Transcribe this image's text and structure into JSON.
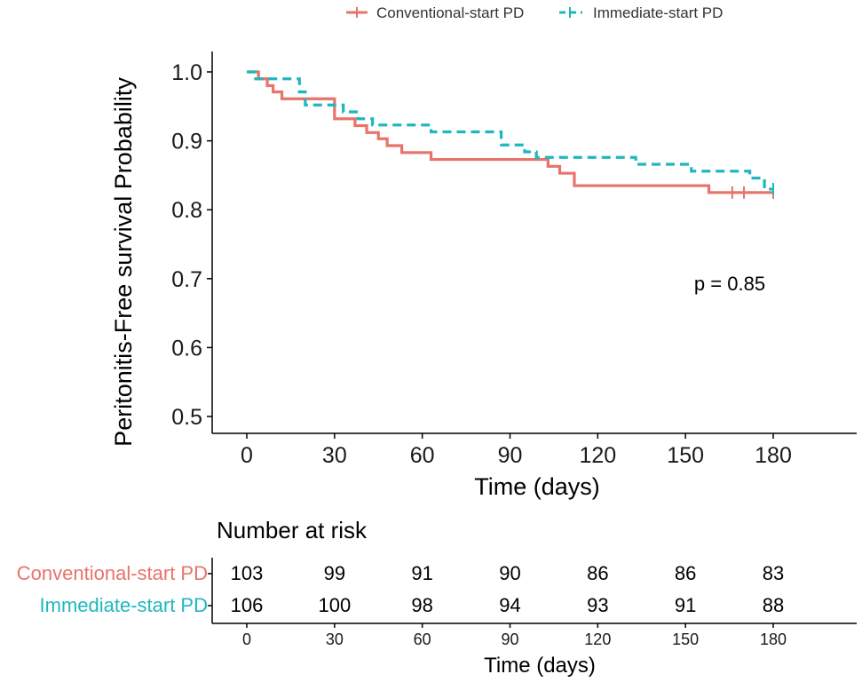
{
  "chart_data": {
    "type": "line",
    "subtype": "kaplan-meier",
    "xlabel": "Time (days)",
    "ylabel": "Peritonitis-Free survival Probability",
    "xlim": [
      -10,
      210
    ],
    "ylim": [
      0.47,
      1.02
    ],
    "xticks": [
      0,
      30,
      60,
      90,
      120,
      150,
      180
    ],
    "yticks": [
      0.5,
      0.6,
      0.7,
      0.8,
      0.9,
      1.0
    ],
    "ytick_labels": [
      "0.5",
      "0.6",
      "0.7",
      "0.8",
      "0.9",
      "1.0"
    ],
    "xtick_labels": [
      "0",
      "30",
      "60",
      "90",
      "120",
      "150",
      "180"
    ],
    "legend_position": "top-center",
    "annotation": "p = 0.85",
    "series": [
      {
        "name": "Conventional-start PD",
        "color": "#e8736b",
        "style": "solid",
        "steps": [
          [
            0,
            1.0
          ],
          [
            4,
            0.99
          ],
          [
            7,
            0.98
          ],
          [
            9,
            0.971
          ],
          [
            12,
            0.961
          ],
          [
            30,
            0.932
          ],
          [
            37,
            0.922
          ],
          [
            41,
            0.912
          ],
          [
            45,
            0.903
          ],
          [
            48,
            0.893
          ],
          [
            53,
            0.883
          ],
          [
            63,
            0.873
          ],
          [
            98,
            0.873
          ],
          [
            103,
            0.863
          ],
          [
            107,
            0.853
          ],
          [
            112,
            0.835
          ],
          [
            158,
            0.825
          ],
          [
            180,
            0.825
          ]
        ],
        "censored": [
          [
            166,
            0.825
          ],
          [
            170,
            0.825
          ],
          [
            180,
            0.825
          ]
        ]
      },
      {
        "name": "Immediate-start PD",
        "color": "#1fb7bf",
        "style": "dashed",
        "steps": [
          [
            0,
            1.0
          ],
          [
            3,
            0.99
          ],
          [
            18,
            0.971
          ],
          [
            20,
            0.952
          ],
          [
            33,
            0.942
          ],
          [
            38,
            0.932
          ],
          [
            43,
            0.923
          ],
          [
            62,
            0.923
          ],
          [
            63,
            0.913
          ],
          [
            84,
            0.913
          ],
          [
            87,
            0.894
          ],
          [
            95,
            0.884
          ],
          [
            99,
            0.876
          ],
          [
            131,
            0.876
          ],
          [
            133,
            0.866
          ],
          [
            152,
            0.856
          ],
          [
            172,
            0.846
          ],
          [
            177,
            0.83
          ],
          [
            180,
            0.83
          ]
        ],
        "censored": [
          [
            180,
            0.83
          ]
        ]
      }
    ]
  },
  "risk_table": {
    "title": "Number at risk",
    "xlabel": "Time (days)",
    "times": [
      "0",
      "30",
      "60",
      "90",
      "120",
      "150",
      "180"
    ],
    "groups": [
      {
        "name": "Conventional-start PD",
        "color": "#e8736b",
        "values": [
          "103",
          "99",
          "91",
          "90",
          "86",
          "86",
          "83"
        ]
      },
      {
        "name": "Immediate-start PD",
        "color": "#1fb7bf",
        "values": [
          "106",
          "100",
          "98",
          "94",
          "93",
          "91",
          "88"
        ]
      }
    ]
  }
}
